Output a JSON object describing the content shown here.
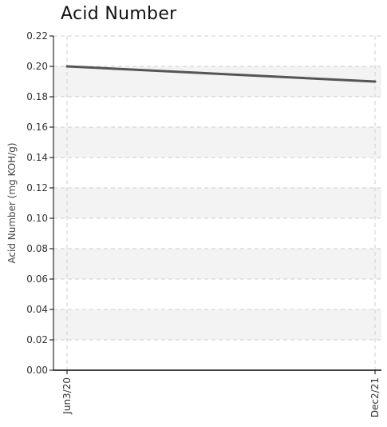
{
  "chart_data": {
    "type": "line",
    "title": "Acid Number",
    "xlabel": "",
    "ylabel": "Acid Number (mg KOH/g)",
    "x": [
      "Jun3/20",
      "Dec2/21"
    ],
    "series": [
      {
        "values": [
          0.2,
          0.19
        ],
        "color": "#555555"
      }
    ],
    "ylim": [
      0,
      0.22
    ],
    "yticks": [
      "0.00",
      "0.02",
      "0.04",
      "0.06",
      "0.08",
      "0.10",
      "0.12",
      "0.14",
      "0.16",
      "0.18",
      "0.20",
      "0.22"
    ],
    "grid": true,
    "band_color": "#f3f3f3",
    "grid_color": "#cfcfcf",
    "axis_color": "#000000"
  }
}
